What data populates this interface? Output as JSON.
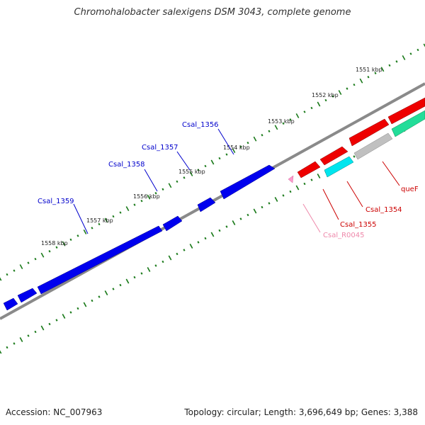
{
  "title": "Chromohalobacter salexigens DSM 3043, complete genome",
  "footer": {
    "accession": "Accession: NC_007963",
    "summary": "Topology: circular; Length: 3,696,649 bp; Genes: 3,388"
  },
  "colors": {
    "forward_gene": "#0000ee",
    "reverse_gene": "#ee0000",
    "backbone": "#888888",
    "tick": "#1a7a1a",
    "rna": "#ff99cc",
    "cyan_feature": "#00e5ee",
    "teal_feature": "#22dd99",
    "grey_feature": "#c0c0c0",
    "forward_label": "#0000cc",
    "reverse_label": "#cc0000",
    "rna_label": "#ee88aa"
  },
  "scale_ticks": [
    {
      "kbp": 1551,
      "label": "1551 kbp"
    },
    {
      "kbp": 1552,
      "label": "1552 kbp"
    },
    {
      "kbp": 1553,
      "label": "1553 kbp"
    },
    {
      "kbp": 1554,
      "label": "1554 kbp"
    },
    {
      "kbp": 1555,
      "label": "1555 kbp"
    },
    {
      "kbp": 1556,
      "label": "1556 kbp"
    },
    {
      "kbp": 1557,
      "label": "1557 kbp"
    },
    {
      "kbp": 1558,
      "label": "1558 kbp"
    }
  ],
  "gene_labels": {
    "csal_1356": "Csal_1356",
    "csal_1357": "Csal_1357",
    "csal_1358": "Csal_1358",
    "csal_1359": "Csal_1359",
    "csal_1355": "Csal_1355",
    "csal_1354": "Csal_1354",
    "quef": "queF",
    "csal_r0045": "Csal_R0045"
  }
}
